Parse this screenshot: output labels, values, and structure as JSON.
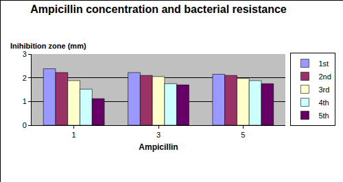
{
  "chart_data": {
    "type": "bar",
    "title": "Ampicillin concentration and bacterial resistance",
    "x_label": "Ampicillin",
    "y_label": "Inihibition zone (mm)",
    "categories": [
      "1",
      "3",
      "5"
    ],
    "series": [
      {
        "name": "1st",
        "color": "#9999ff",
        "values": [
          2.38,
          2.22,
          2.15
        ]
      },
      {
        "name": "2nd",
        "color": "#993366",
        "values": [
          2.22,
          2.1,
          2.1
        ]
      },
      {
        "name": "3rd",
        "color": "#ffffcc",
        "values": [
          1.88,
          2.05,
          1.97
        ]
      },
      {
        "name": "4th",
        "color": "#ccffff",
        "values": [
          1.52,
          1.75,
          1.88
        ]
      },
      {
        "name": "5th",
        "color": "#660066",
        "values": [
          1.12,
          1.7,
          1.75
        ]
      }
    ],
    "ylim": [
      0,
      3
    ],
    "yticks": [
      0,
      1,
      2,
      3
    ],
    "grid": true,
    "legend": "right"
  }
}
